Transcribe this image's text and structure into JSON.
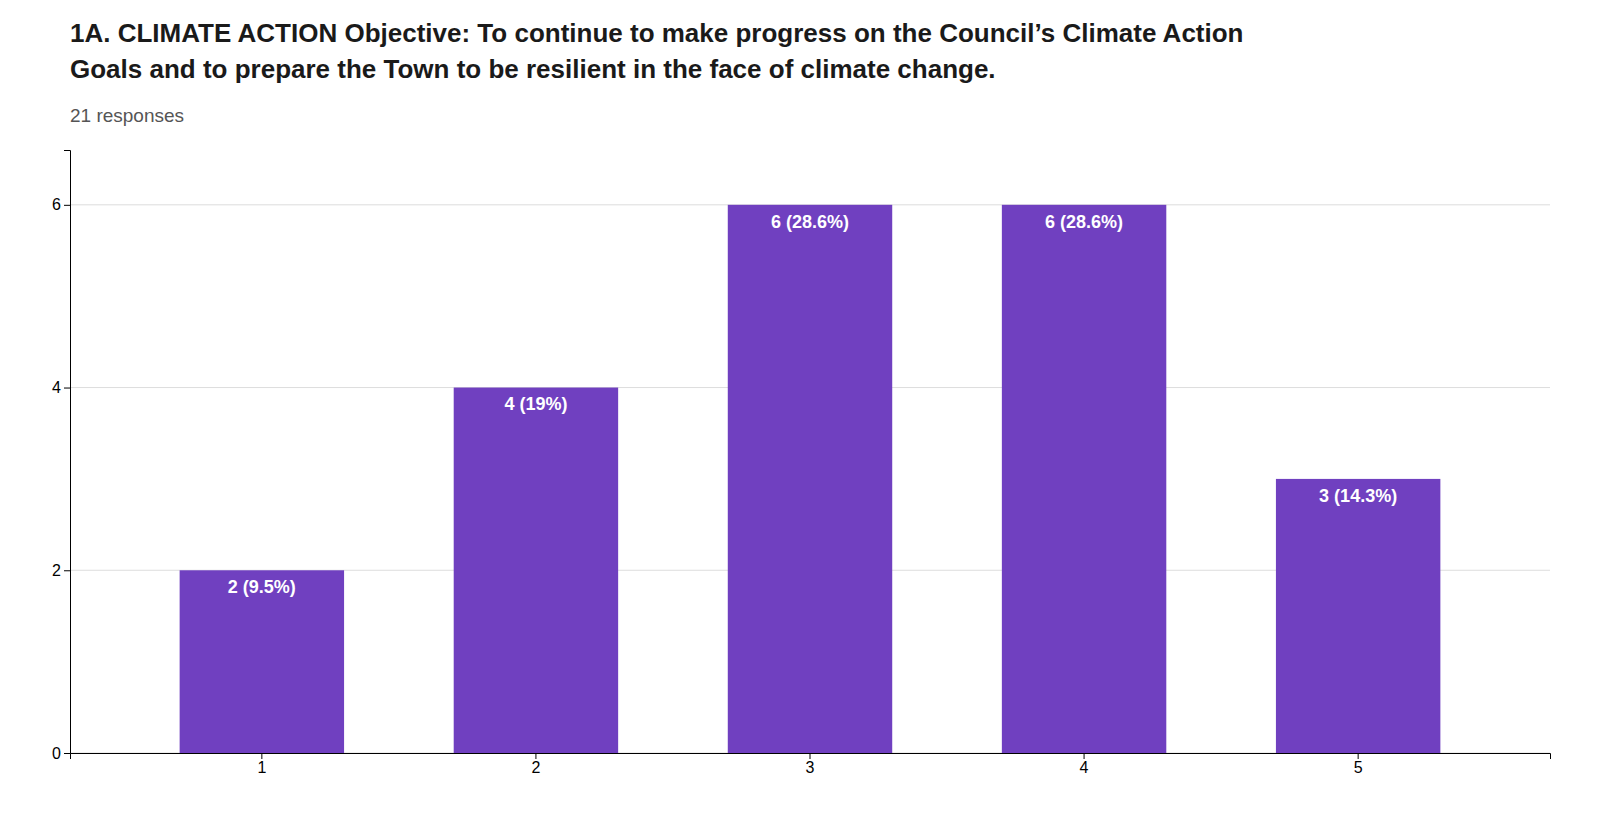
{
  "chart_data": {
    "type": "bar",
    "title": [
      "1A. CLIMATE ACTION  Objective: To continue to make progress on the Council’s Climate Action",
      "Goals and to prepare the Town to be resilient in the face of climate change."
    ],
    "subtitle": "21 responses",
    "categories": [
      "1",
      "2",
      "3",
      "4",
      "5"
    ],
    "values": [
      2,
      4,
      6,
      6,
      3
    ],
    "value_labels": [
      "2 (9.5%)",
      "4 (19%)",
      "6 (28.6%)",
      "6 (28.6%)",
      "3 (14.3%)"
    ],
    "data_labels": true,
    "color": "#7040C0",
    "ylim": [
      0,
      6.6
    ],
    "yticks": [
      0,
      2,
      4,
      6
    ],
    "grid": true
  }
}
